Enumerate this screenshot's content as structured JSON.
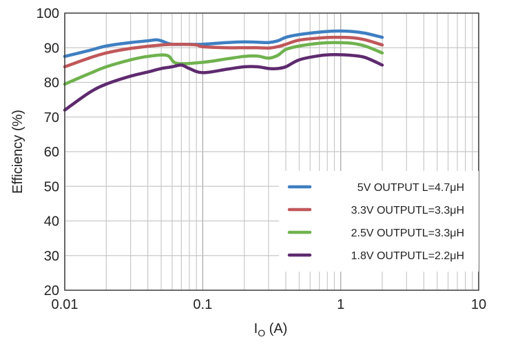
{
  "chart_data": {
    "type": "line",
    "title": "",
    "xlabel": "IO (A)",
    "xlabel_main": "I",
    "xlabel_sub": "O",
    "xlabel_rest": " (A)",
    "ylabel": "Efficiency (%)",
    "xscale": "log",
    "xlim": [
      0.01,
      10
    ],
    "ylim": [
      20,
      100
    ],
    "grid": true,
    "legend_position": "bottom-right",
    "x_ticks": [
      {
        "value": 0.01,
        "label": "0.01"
      },
      {
        "value": 0.1,
        "label": "0.1"
      },
      {
        "value": 1,
        "label": "1"
      },
      {
        "value": 10,
        "label": "10"
      }
    ],
    "y_ticks": [
      {
        "value": 20,
        "label": "20"
      },
      {
        "value": 30,
        "label": "30"
      },
      {
        "value": 40,
        "label": "40"
      },
      {
        "value": 50,
        "label": "50"
      },
      {
        "value": 60,
        "label": "60"
      },
      {
        "value": 70,
        "label": "70"
      },
      {
        "value": 80,
        "label": "80"
      },
      {
        "value": 90,
        "label": "90"
      },
      {
        "value": 100,
        "label": "100"
      }
    ],
    "series": [
      {
        "name": "5V OUTPUT L=4.7μH",
        "color": "#3f7fc1",
        "x": [
          0.01,
          0.015,
          0.02,
          0.03,
          0.04,
          0.046,
          0.05,
          0.06,
          0.08,
          0.1,
          0.15,
          0.2,
          0.25,
          0.3,
          0.35,
          0.4,
          0.5,
          0.7,
          0.9,
          1.2,
          1.5,
          2.0
        ],
        "y": [
          87.5,
          89.2,
          90.5,
          91.5,
          92.0,
          92.3,
          92.0,
          91.0,
          91.0,
          91.0,
          91.5,
          91.7,
          91.6,
          91.5,
          92.0,
          93.0,
          93.8,
          94.5,
          94.8,
          94.7,
          94.2,
          93.0
        ]
      },
      {
        "name": "3.3V OUTPUTL=3.3μH",
        "color": "#c0575a",
        "x": [
          0.01,
          0.015,
          0.02,
          0.03,
          0.05,
          0.07,
          0.09,
          0.1,
          0.15,
          0.2,
          0.25,
          0.3,
          0.35,
          0.4,
          0.5,
          0.7,
          0.9,
          1.2,
          1.5,
          2.0
        ],
        "y": [
          84.5,
          87.0,
          88.5,
          89.8,
          90.8,
          91.0,
          90.8,
          90.3,
          90.0,
          90.0,
          90.0,
          89.9,
          90.3,
          91.0,
          92.2,
          92.8,
          93.0,
          92.9,
          92.3,
          90.8
        ]
      },
      {
        "name": "2.5V OUTPUTL=3.3μH",
        "color": "#6fb24e",
        "x": [
          0.01,
          0.015,
          0.02,
          0.03,
          0.04,
          0.055,
          0.065,
          0.1,
          0.15,
          0.2,
          0.25,
          0.3,
          0.35,
          0.4,
          0.5,
          0.7,
          0.9,
          1.2,
          1.5,
          2.0
        ],
        "y": [
          79.5,
          82.5,
          84.5,
          86.5,
          87.5,
          87.8,
          85.5,
          85.8,
          86.8,
          87.5,
          87.6,
          87.0,
          87.8,
          89.5,
          90.5,
          91.3,
          91.5,
          91.3,
          90.5,
          88.5
        ]
      },
      {
        "name": "1.8V OUTPUTL=2.2μH",
        "color": "#5e2a6e",
        "x": [
          0.01,
          0.015,
          0.02,
          0.03,
          0.04,
          0.05,
          0.06,
          0.07,
          0.08,
          0.1,
          0.15,
          0.2,
          0.25,
          0.3,
          0.35,
          0.4,
          0.5,
          0.7,
          0.9,
          1.2,
          1.5,
          2.0
        ],
        "y": [
          72.0,
          77.0,
          79.5,
          81.8,
          83.0,
          84.0,
          84.5,
          85.0,
          84.0,
          82.8,
          83.8,
          84.5,
          84.5,
          84.0,
          84.0,
          84.5,
          86.5,
          87.7,
          88.0,
          87.8,
          87.2,
          85.0
        ]
      }
    ]
  }
}
